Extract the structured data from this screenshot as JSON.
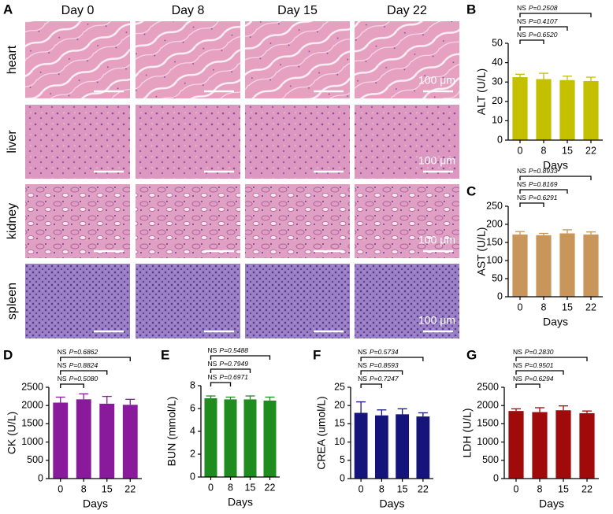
{
  "panel_a": {
    "label": "A",
    "columns": [
      "Day 0",
      "Day 8",
      "Day 15",
      "Day 22"
    ],
    "rows": [
      "heart",
      "liver",
      "kidney",
      "spleen"
    ],
    "scale_bar": "100 μm"
  },
  "chart_data": [
    {
      "type": "bar",
      "panel": "B",
      "ylabel": "ALT (U/L)",
      "xlabel": "Days",
      "categories": [
        "0",
        "8",
        "15",
        "22"
      ],
      "values": [
        32.5,
        31.5,
        31,
        30.5
      ],
      "errors": [
        1.5,
        3,
        2,
        2
      ],
      "color": "#c4c000",
      "ylim": [
        0,
        50
      ],
      "yticks": [
        0,
        10,
        20,
        30,
        40,
        50
      ],
      "comparisons": [
        {
          "label": "NS",
          "p": "P=0.6520"
        },
        {
          "label": "NS",
          "p": "P=0.4107"
        },
        {
          "label": "NS",
          "p": "P=0.2508"
        }
      ]
    },
    {
      "type": "bar",
      "panel": "C",
      "ylabel": "AST (U/L)",
      "xlabel": "Days",
      "categories": [
        "0",
        "8",
        "15",
        "22"
      ],
      "values": [
        172,
        170,
        175,
        172
      ],
      "errors": [
        8,
        5,
        10,
        7
      ],
      "color": "#c8965a",
      "ylim": [
        0,
        250
      ],
      "yticks": [
        0,
        50,
        100,
        150,
        200,
        250
      ],
      "comparisons": [
        {
          "label": "NS",
          "p": "P=0.6291"
        },
        {
          "label": "NS",
          "p": "P=0.8169"
        },
        {
          "label": "NS",
          "p": "P=0.8933"
        }
      ]
    },
    {
      "type": "bar",
      "panel": "D",
      "ylabel": "CK (U/L)",
      "xlabel": "Days",
      "categories": [
        "0",
        "8",
        "15",
        "22"
      ],
      "values": [
        2080,
        2170,
        2050,
        2020
      ],
      "errors": [
        150,
        150,
        200,
        150
      ],
      "color": "#8a1a9c",
      "ylim": [
        0,
        2500
      ],
      "yticks": [
        0,
        500,
        1000,
        1500,
        2000,
        2500
      ],
      "comparisons": [
        {
          "label": "NS",
          "p": "P=0.5080"
        },
        {
          "label": "NS",
          "p": "P=0.8824"
        },
        {
          "label": "NS",
          "p": "P=0.6862"
        }
      ]
    },
    {
      "type": "bar",
      "panel": "E",
      "ylabel": "BUN (mmol/L)",
      "xlabel": "Days",
      "categories": [
        "0",
        "8",
        "15",
        "22"
      ],
      "values": [
        6.9,
        6.8,
        6.8,
        6.7
      ],
      "errors": [
        0.2,
        0.2,
        0.3,
        0.3
      ],
      "color": "#1e8c1e",
      "ylim": [
        0,
        8
      ],
      "yticks": [
        0,
        2,
        4,
        6,
        8
      ],
      "comparisons": [
        {
          "label": "NS",
          "p": "P=0.6971"
        },
        {
          "label": "NS",
          "p": "P=0.7949"
        },
        {
          "label": "NS",
          "p": "P=0.5488"
        }
      ]
    },
    {
      "type": "bar",
      "panel": "F",
      "ylabel": "CREA (umol/L)",
      "xlabel": "Days",
      "categories": [
        "0",
        "8",
        "15",
        "22"
      ],
      "values": [
        18,
        17.3,
        17.6,
        17
      ],
      "errors": [
        3,
        1.5,
        1.5,
        1
      ],
      "color": "#14147a",
      "ylim": [
        0,
        25
      ],
      "yticks": [
        0,
        5,
        10,
        15,
        20,
        25
      ],
      "comparisons": [
        {
          "label": "NS",
          "p": "P=0.7247"
        },
        {
          "label": "NS",
          "p": "P=0.8593"
        },
        {
          "label": "NS",
          "p": "P=0.5734"
        }
      ]
    },
    {
      "type": "bar",
      "panel": "G",
      "ylabel": "LDH (U/L)",
      "xlabel": "Days",
      "categories": [
        "0",
        "8",
        "15",
        "22"
      ],
      "values": [
        1850,
        1820,
        1870,
        1790
      ],
      "errors": [
        60,
        120,
        120,
        60
      ],
      "color": "#a00a0a",
      "ylim": [
        0,
        2500
      ],
      "yticks": [
        0,
        500,
        1000,
        1500,
        2000,
        2500
      ],
      "comparisons": [
        {
          "label": "NS",
          "p": "P=0.6294"
        },
        {
          "label": "NS",
          "p": "P=0.9501"
        },
        {
          "label": "NS",
          "p": "P=0.2830"
        }
      ]
    }
  ]
}
